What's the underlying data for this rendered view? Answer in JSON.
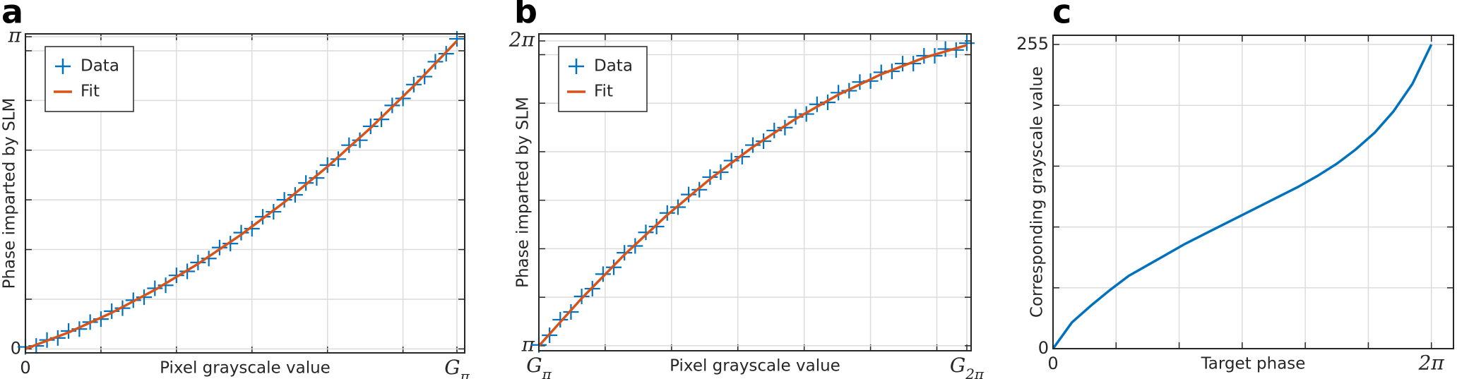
{
  "chart_data": [
    {
      "type": "line",
      "panel_label": "a",
      "x_label": "Pixel grayscale value",
      "y_label": "Phase imparted by SLM",
      "xlim": [
        0,
        1.018
      ],
      "ylim": [
        -0.04,
        3.17
      ],
      "xticks": [
        0,
        {
          "value": 0.175,
          "label": null
        },
        {
          "value": 0.35,
          "label": null
        },
        {
          "value": 0.525,
          "label": null
        },
        {
          "value": 0.7,
          "label": null
        },
        {
          "value": 0.875,
          "label": null
        },
        {
          "value": 1,
          "label": "Gπ"
        }
      ],
      "yticks": [
        0,
        {
          "value": 0.5,
          "label": null
        },
        {
          "value": 1,
          "label": null
        },
        {
          "value": 1.5,
          "label": null
        },
        {
          "value": 2,
          "label": null
        },
        {
          "value": 2.5,
          "label": null
        },
        {
          "value": 3,
          "label": null
        },
        {
          "value": 3.1416,
          "label": "π"
        }
      ],
      "grid": true,
      "legend": "upper left",
      "series": [
        {
          "name": "Data",
          "color": "#0072bd",
          "marker": "+",
          "x": [
            0,
            0.025,
            0.05,
            0.075,
            0.1,
            0.125,
            0.15,
            0.175,
            0.2,
            0.225,
            0.25,
            0.275,
            0.3,
            0.325,
            0.35,
            0.375,
            0.4,
            0.425,
            0.45,
            0.475,
            0.5,
            0.525,
            0.55,
            0.575,
            0.6,
            0.625,
            0.65,
            0.675,
            0.7,
            0.725,
            0.75,
            0.775,
            0.8,
            0.825,
            0.85,
            0.875,
            0.9,
            0.925,
            0.95,
            0.975,
            1
          ],
          "values": [
            0.02,
            0.03,
            0.09,
            0.11,
            0.18,
            0.2,
            0.27,
            0.3,
            0.38,
            0.41,
            0.49,
            0.52,
            0.61,
            0.64,
            0.74,
            0.78,
            0.87,
            0.91,
            1.02,
            1.06,
            1.17,
            1.21,
            1.33,
            1.38,
            1.5,
            1.55,
            1.67,
            1.72,
            1.85,
            1.91,
            2.05,
            2.1,
            2.24,
            2.31,
            2.45,
            2.52,
            2.66,
            2.74,
            2.89,
            2.97,
            3.12
          ]
        },
        {
          "name": "Fit",
          "color": "#d95319",
          "marker": "line",
          "x": [
            0,
            0.1,
            0.2,
            0.3,
            0.4,
            0.5,
            0.6,
            0.7,
            0.8,
            0.9,
            1
          ],
          "values": [
            0,
            0.166,
            0.364,
            0.594,
            0.856,
            1.15,
            1.476,
            1.834,
            2.224,
            2.646,
            3.1
          ]
        }
      ]
    },
    {
      "type": "line",
      "panel_label": "b",
      "x_label": "Pixel grayscale value",
      "y_label": "Phase imparted by SLM",
      "xlim": [
        0,
        1.01
      ],
      "ylim": [
        3.09,
        6.356
      ],
      "xticks": [
        {
          "value": 0,
          "label": "Gπ"
        },
        {
          "value": 0.155,
          "label": null
        },
        {
          "value": 0.31,
          "label": null
        },
        {
          "value": 0.465,
          "label": null
        },
        {
          "value": 0.62,
          "label": null
        },
        {
          "value": 0.775,
          "label": null
        },
        {
          "value": 0.93,
          "label": null
        },
        {
          "value": 1,
          "label": "G2π"
        }
      ],
      "yticks": [
        {
          "value": 3.1416,
          "label": "π"
        },
        {
          "value": 3.6416,
          "label": null
        },
        {
          "value": 4.1416,
          "label": null
        },
        {
          "value": 4.6416,
          "label": null
        },
        {
          "value": 5.1416,
          "label": null
        },
        {
          "value": 5.6416,
          "label": null
        },
        {
          "value": 6.1416,
          "label": null
        },
        {
          "value": 6.2832,
          "label": "2π"
        }
      ],
      "grid": true,
      "legend": "upper left",
      "series": [
        {
          "name": "Data",
          "color": "#0072bd",
          "marker": "+",
          "x": [
            0,
            0.025,
            0.05,
            0.075,
            0.1,
            0.125,
            0.15,
            0.175,
            0.2,
            0.225,
            0.25,
            0.275,
            0.3,
            0.325,
            0.35,
            0.375,
            0.4,
            0.425,
            0.45,
            0.475,
            0.5,
            0.525,
            0.55,
            0.575,
            0.6,
            0.625,
            0.65,
            0.675,
            0.7,
            0.725,
            0.75,
            0.775,
            0.8,
            0.825,
            0.85,
            0.875,
            0.9,
            0.925,
            0.95,
            0.975,
            1
          ],
          "values": [
            3.15,
            3.25,
            3.41,
            3.49,
            3.65,
            3.73,
            3.88,
            3.95,
            4.1,
            4.17,
            4.31,
            4.37,
            4.51,
            4.57,
            4.7,
            4.75,
            4.88,
            4.93,
            5.05,
            5.09,
            5.21,
            5.25,
            5.36,
            5.39,
            5.5,
            5.53,
            5.63,
            5.65,
            5.75,
            5.77,
            5.86,
            5.87,
            5.96,
            5.97,
            6.05,
            6.05,
            6.13,
            6.13,
            6.2,
            6.19,
            6.26
          ]
        },
        {
          "name": "Fit",
          "color": "#d95319",
          "marker": "line",
          "x": [
            0,
            0.1,
            0.2,
            0.3,
            0.4,
            0.5,
            0.6,
            0.7,
            0.8,
            0.9,
            1
          ],
          "values": [
            3.14,
            3.63,
            4.08,
            4.49,
            4.86,
            5.19,
            5.48,
            5.73,
            5.94,
            6.11,
            6.24
          ]
        }
      ]
    },
    {
      "type": "line",
      "panel_label": "c",
      "x_label": "Target phase",
      "y_label": "Corresponding grayscale value",
      "xlim": [
        0,
        6.65
      ],
      "ylim": [
        0,
        262.7
      ],
      "xticks": [
        0,
        {
          "value": 1.0472,
          "label": null
        },
        {
          "value": 2.0944,
          "label": null
        },
        {
          "value": 3.1416,
          "label": null
        },
        {
          "value": 4.1888,
          "label": null
        },
        {
          "value": 5.236,
          "label": null
        },
        {
          "value": 6.2832,
          "label": "2π"
        }
      ],
      "yticks": [
        0,
        {
          "value": 51,
          "label": null
        },
        {
          "value": 102,
          "label": null
        },
        {
          "value": 153,
          "label": null
        },
        {
          "value": 204,
          "label": null
        },
        255
      ],
      "grid": true,
      "series": [
        {
          "color": "#0072bd",
          "marker": "line",
          "x": [
            0,
            0.314,
            0.628,
            0.942,
            1.257,
            1.571,
            1.885,
            2.199,
            2.513,
            2.827,
            3.142,
            3.456,
            3.77,
            4.084,
            4.398,
            4.712,
            5.027,
            5.341,
            5.655,
            5.969,
            6.283
          ],
          "values": [
            0,
            22,
            36,
            49,
            61,
            70,
            79,
            88,
            96,
            104,
            112,
            120,
            128,
            136,
            145,
            155,
            167,
            181,
            199,
            222,
            255
          ]
        }
      ]
    }
  ]
}
